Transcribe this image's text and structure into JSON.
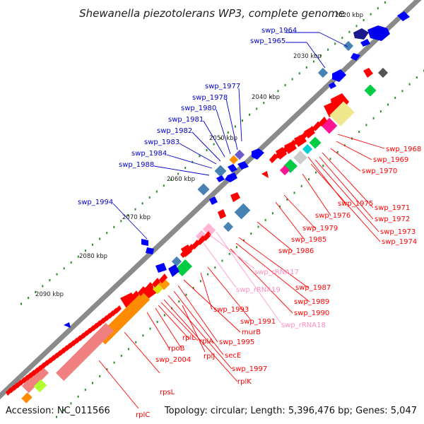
{
  "title": "Shewanella piezotolerans WP3, complete genome",
  "footer": {
    "accession": "Accession: NC_011566",
    "summary": "Topology: circular; Length: 5,396,476 bp; Genes: 5,047"
  },
  "kbp_ticks": [
    "2020 kbp",
    "2030 kbp",
    "2040 kbp",
    "2050 kbp",
    "2060 kbp",
    "2070 kbp",
    "2080 kbp",
    "2090 kbp"
  ],
  "left_labels": [
    "swp_1964",
    "swp_1965",
    "swp_1977",
    "swp_1978",
    "swp_1980",
    "swp_1981",
    "swp_1982",
    "swp_1983",
    "swp_1984",
    "swp_1988",
    "swp_1994"
  ],
  "right_labels": [
    "swp_1968",
    "swp_1969",
    "swp_1970",
    "swp_1971",
    "swp_1972",
    "swp_1973",
    "swp_1974",
    "swp_1975",
    "swp_1976",
    "swp_1979",
    "swp_1985",
    "swp_1986",
    "swp_rRNA17",
    "swp_1987",
    "swp_rRNA19",
    "swp_1989",
    "swp_1990",
    "swp_rRNA18",
    "swp_1991",
    "swp_1993",
    "murB",
    "swp_1995",
    "secE",
    "rplL",
    "rplA",
    "rpoB",
    "rplJ",
    "swp_1997",
    "rplK",
    "swp_2004",
    "rpsL",
    "rplC"
  ],
  "colors": {
    "forward": "#0000ff",
    "reverse": "#ff0000",
    "rRNA": "#ff99cc",
    "backbone": "#808080",
    "gc_dot": "#228b22"
  }
}
